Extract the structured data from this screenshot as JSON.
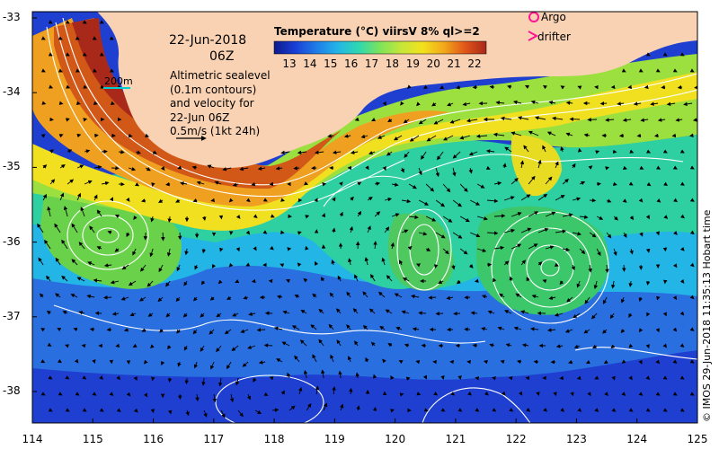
{
  "map": {
    "title": "Temperature (°C) viirsV 8% ql>=2",
    "date": "22-Jun-2018",
    "time": "06Z",
    "description_lines": [
      "Altimetric sealevel",
      "(0.1m contours)",
      "and velocity for",
      "22-Jun 06Z",
      "0.5m/s (1kt 24h)"
    ],
    "scale_label": "200m",
    "legend": {
      "argo_label": "Argo",
      "drifter_label": "drifter"
    },
    "credit": "© IMOS 29-Jun-2018 11:35:13 Hobart time",
    "colorbar": {
      "ticks": [
        "13",
        "14",
        "15",
        "16",
        "17",
        "18",
        "19",
        "20",
        "21",
        "22"
      ],
      "colors": [
        "#0d1a8c",
        "#1a3fd6",
        "#1f7de8",
        "#23b5e6",
        "#2fd8b0",
        "#7ee35a",
        "#c6e63a",
        "#f2e21c",
        "#f2a81a",
        "#e0561a",
        "#a8281a"
      ]
    },
    "x_ticks": [
      "114",
      "115",
      "116",
      "117",
      "118",
      "119",
      "120",
      "121",
      "122",
      "123",
      "124",
      "125"
    ],
    "y_ticks": [
      "-33",
      "-34",
      "-35",
      "-36",
      "-37",
      "-38"
    ],
    "colors": {
      "land": "#f8d2b3",
      "contour": "#ffffff",
      "arrow": "#000000",
      "legend_marker": "#ff1493",
      "scale_bar": "#00ced1"
    }
  }
}
